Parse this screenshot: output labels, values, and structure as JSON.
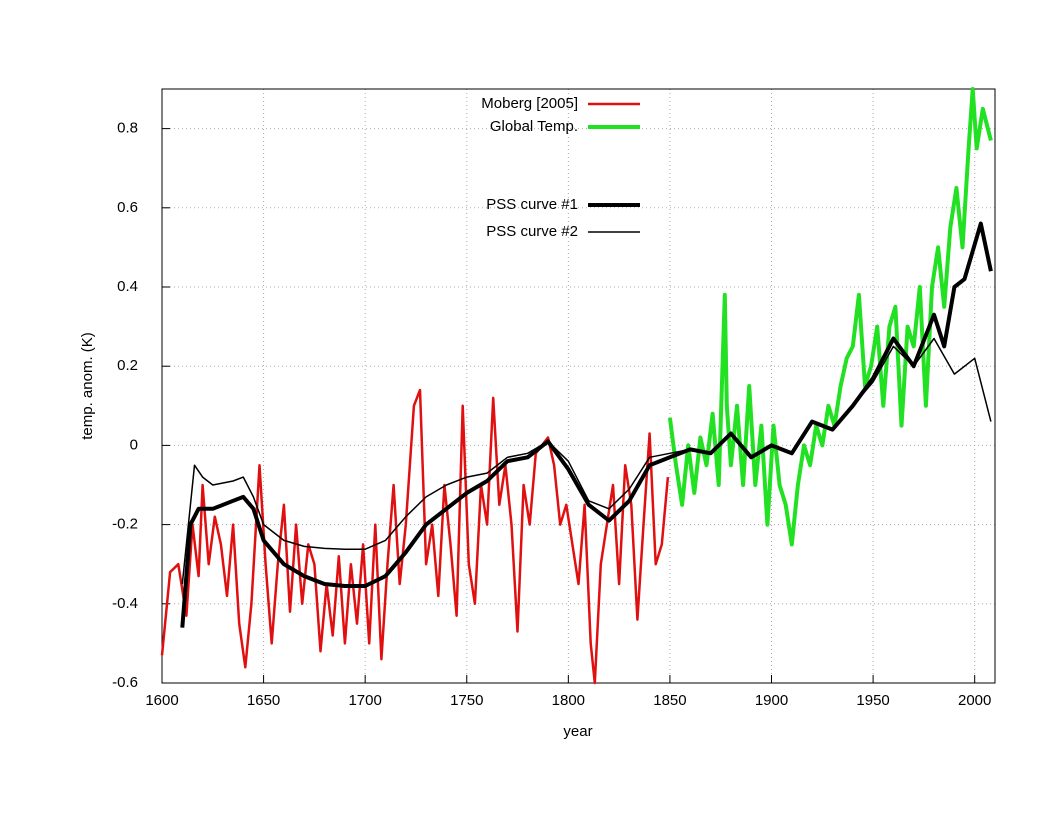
{
  "chart_data": {
    "type": "line",
    "x_label": "year",
    "y_label": "temp. anom.  (K)",
    "xlim": [
      1600,
      2010
    ],
    "ylim": [
      -0.6,
      0.9
    ],
    "xticks": [
      1600,
      1650,
      1700,
      1750,
      1800,
      1850,
      1900,
      1950,
      2000
    ],
    "yticks": [
      -0.6,
      -0.4,
      -0.2,
      0,
      0.2,
      0.4,
      0.6,
      0.8
    ],
    "grid": true,
    "series": [
      {
        "name": "Moberg [2005]",
        "color": "#e01010",
        "x": [
          1600,
          1604,
          1608,
          1612,
          1615,
          1618,
          1620,
          1623,
          1626,
          1629,
          1632,
          1635,
          1638,
          1641,
          1644,
          1648,
          1651,
          1654,
          1657,
          1660,
          1663,
          1666,
          1669,
          1672,
          1675,
          1678,
          1681,
          1684,
          1687,
          1690,
          1693,
          1696,
          1699,
          1702,
          1705,
          1708,
          1711,
          1714,
          1717,
          1720,
          1724,
          1727,
          1730,
          1733,
          1736,
          1739,
          1742,
          1745,
          1748,
          1751,
          1754,
          1757,
          1760,
          1763,
          1766,
          1769,
          1772,
          1775,
          1778,
          1781,
          1784,
          1787,
          1790,
          1793,
          1796,
          1799,
          1802,
          1805,
          1808,
          1811,
          1813,
          1816,
          1819,
          1822,
          1825,
          1828,
          1831,
          1834,
          1837,
          1840,
          1843,
          1846,
          1849
        ],
        "values": [
          -0.53,
          -0.32,
          -0.3,
          -0.43,
          -0.2,
          -0.33,
          -0.1,
          -0.3,
          -0.18,
          -0.25,
          -0.38,
          -0.2,
          -0.45,
          -0.56,
          -0.4,
          -0.05,
          -0.3,
          -0.5,
          -0.3,
          -0.15,
          -0.42,
          -0.2,
          -0.4,
          -0.25,
          -0.3,
          -0.52,
          -0.35,
          -0.48,
          -0.28,
          -0.5,
          -0.3,
          -0.45,
          -0.25,
          -0.5,
          -0.2,
          -0.54,
          -0.3,
          -0.1,
          -0.35,
          -0.2,
          0.1,
          0.14,
          -0.3,
          -0.2,
          -0.38,
          -0.1,
          -0.25,
          -0.43,
          0.1,
          -0.3,
          -0.4,
          -0.1,
          -0.2,
          0.12,
          -0.15,
          -0.05,
          -0.2,
          -0.47,
          -0.1,
          -0.2,
          -0.02,
          0.0,
          0.02,
          -0.05,
          -0.2,
          -0.15,
          -0.25,
          -0.35,
          -0.15,
          -0.5,
          -0.6,
          -0.3,
          -0.2,
          -0.1,
          -0.35,
          -0.05,
          -0.15,
          -0.44,
          -0.2,
          0.03,
          -0.3,
          -0.25,
          -0.08
        ]
      },
      {
        "name": "Global Temp.",
        "color": "#22e022",
        "x": [
          1850,
          1853,
          1856,
          1859,
          1862,
          1865,
          1868,
          1871,
          1874,
          1877,
          1878,
          1880,
          1883,
          1886,
          1889,
          1892,
          1895,
          1898,
          1901,
          1904,
          1907,
          1910,
          1913,
          1916,
          1919,
          1922,
          1925,
          1928,
          1931,
          1934,
          1937,
          1940,
          1943,
          1946,
          1949,
          1952,
          1955,
          1958,
          1961,
          1964,
          1967,
          1970,
          1973,
          1976,
          1979,
          1982,
          1985,
          1988,
          1991,
          1994,
          1997,
          1999,
          2001,
          2004,
          2008
        ],
        "values": [
          0.07,
          -0.05,
          -0.15,
          0.0,
          -0.12,
          0.02,
          -0.05,
          0.08,
          -0.1,
          0.38,
          0.1,
          -0.05,
          0.1,
          -0.1,
          0.15,
          -0.1,
          0.05,
          -0.2,
          0.05,
          -0.1,
          -0.15,
          -0.25,
          -0.1,
          0.0,
          -0.05,
          0.05,
          0.0,
          0.1,
          0.05,
          0.15,
          0.22,
          0.25,
          0.38,
          0.15,
          0.2,
          0.3,
          0.1,
          0.3,
          0.35,
          0.05,
          0.3,
          0.25,
          0.4,
          0.1,
          0.4,
          0.5,
          0.35,
          0.55,
          0.65,
          0.5,
          0.75,
          0.9,
          0.75,
          0.85,
          0.77
        ]
      },
      {
        "name": "PSS curve #1",
        "color": "#000000",
        "x": [
          1610,
          1614,
          1618,
          1625,
          1635,
          1640,
          1645,
          1650,
          1660,
          1670,
          1680,
          1690,
          1700,
          1710,
          1720,
          1730,
          1740,
          1750,
          1760,
          1770,
          1780,
          1790,
          1800,
          1810,
          1820,
          1830,
          1840,
          1850,
          1860,
          1870,
          1880,
          1890,
          1900,
          1910,
          1920,
          1930,
          1940,
          1950,
          1960,
          1970,
          1980,
          1985,
          1990,
          1995,
          2003,
          2008
        ],
        "values": [
          -0.46,
          -0.2,
          -0.16,
          -0.16,
          -0.14,
          -0.13,
          -0.16,
          -0.24,
          -0.3,
          -0.33,
          -0.35,
          -0.355,
          -0.355,
          -0.33,
          -0.27,
          -0.2,
          -0.16,
          -0.12,
          -0.09,
          -0.04,
          -0.03,
          0.01,
          -0.06,
          -0.15,
          -0.19,
          -0.14,
          -0.05,
          -0.03,
          -0.01,
          -0.02,
          0.03,
          -0.03,
          0.0,
          -0.02,
          0.06,
          0.04,
          0.1,
          0.17,
          0.27,
          0.2,
          0.33,
          0.25,
          0.4,
          0.42,
          0.56,
          0.44
        ]
      },
      {
        "name": "PSS curve #2",
        "color": "#000000",
        "x": [
          1610,
          1616,
          1620,
          1625,
          1635,
          1640,
          1645,
          1650,
          1660,
          1670,
          1680,
          1690,
          1700,
          1710,
          1720,
          1730,
          1740,
          1750,
          1760,
          1770,
          1780,
          1790,
          1800,
          1810,
          1820,
          1830,
          1840,
          1850,
          1860,
          1870,
          1880,
          1890,
          1900,
          1910,
          1920,
          1930,
          1940,
          1950,
          1960,
          1970,
          1980,
          1990,
          2000,
          2008
        ],
        "values": [
          -0.35,
          -0.05,
          -0.08,
          -0.1,
          -0.09,
          -0.08,
          -0.13,
          -0.2,
          -0.24,
          -0.255,
          -0.26,
          -0.262,
          -0.262,
          -0.24,
          -0.18,
          -0.13,
          -0.1,
          -0.08,
          -0.07,
          -0.03,
          -0.02,
          0.01,
          -0.04,
          -0.14,
          -0.16,
          -0.11,
          -0.03,
          -0.02,
          -0.01,
          -0.02,
          0.03,
          -0.03,
          0.0,
          -0.02,
          0.06,
          0.04,
          0.1,
          0.16,
          0.25,
          0.2,
          0.27,
          0.18,
          0.22,
          0.06
        ]
      }
    ]
  }
}
